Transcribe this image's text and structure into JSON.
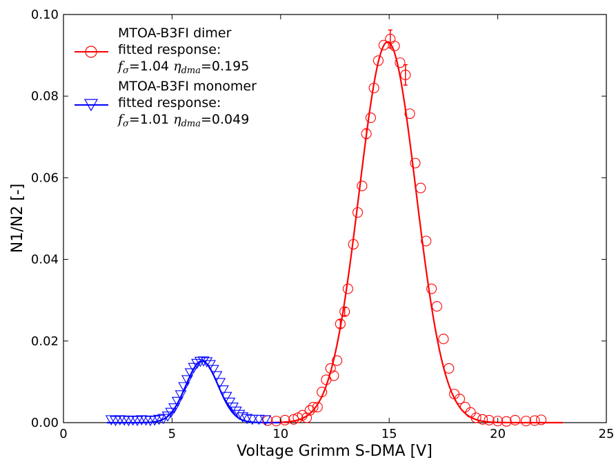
{
  "chart_data": {
    "type": "scatter",
    "xlabel": "Voltage Grimm S-DMA [V]",
    "ylabel": "N1/N2 [-]",
    "xlim": [
      0,
      25
    ],
    "ylim": [
      0,
      0.1
    ],
    "xticks": [
      0,
      5,
      10,
      15,
      20,
      25
    ],
    "xtick_labels": [
      "0",
      "5",
      "10",
      "15",
      "20",
      "25"
    ],
    "yticks": [
      0,
      0.02,
      0.04,
      0.06,
      0.08,
      0.1
    ],
    "ytick_labels": [
      "0.00",
      "0.02",
      "0.04",
      "0.06",
      "0.08",
      "0.10"
    ],
    "grid": false,
    "legend_position": "top-left",
    "series": [
      {
        "name": "MTOA-B3FI dimer",
        "legend_lines": [
          "MTOA-B3FI dimer",
          "fitted response:"
        ],
        "params": {
          "f_sigma": "1.04",
          "eta_dma": "0.195"
        },
        "color": "#ff0000",
        "marker": "circle",
        "points": [
          [
            9.4,
            0.0005
          ],
          [
            9.8,
            0.0004
          ],
          [
            10.2,
            0.0006
          ],
          [
            10.6,
            0.0008
          ],
          [
            10.8,
            0.0012
          ],
          [
            11.0,
            0.0018
          ],
          [
            11.2,
            0.0012
          ],
          [
            11.35,
            0.003
          ],
          [
            11.5,
            0.0038
          ],
          [
            11.7,
            0.0038
          ],
          [
            11.9,
            0.0075
          ],
          [
            12.1,
            0.0105
          ],
          [
            12.3,
            0.0133
          ],
          [
            12.45,
            0.0115
          ],
          [
            12.6,
            0.0152
          ],
          [
            12.75,
            0.0242
          ],
          [
            12.95,
            0.0272
          ],
          [
            13.1,
            0.0328
          ],
          [
            13.35,
            0.0437
          ],
          [
            13.55,
            0.0515
          ],
          [
            13.75,
            0.058
          ],
          [
            13.95,
            0.0708
          ],
          [
            14.15,
            0.0747
          ],
          [
            14.3,
            0.082
          ],
          [
            14.5,
            0.0887
          ],
          [
            14.75,
            0.0925
          ],
          [
            15.05,
            0.094
          ],
          [
            15.25,
            0.0923
          ],
          [
            15.5,
            0.0882
          ],
          [
            15.75,
            0.0852
          ],
          [
            15.95,
            0.0757
          ],
          [
            16.2,
            0.0636
          ],
          [
            16.45,
            0.0575
          ],
          [
            16.7,
            0.0445
          ],
          [
            16.95,
            0.0328
          ],
          [
            17.2,
            0.0285
          ],
          [
            17.5,
            0.0205
          ],
          [
            17.75,
            0.0133
          ],
          [
            18.0,
            0.007
          ],
          [
            18.25,
            0.0058
          ],
          [
            18.5,
            0.0038
          ],
          [
            18.75,
            0.0025
          ],
          [
            19.0,
            0.0012
          ],
          [
            19.3,
            0.0008
          ],
          [
            19.6,
            0.0006
          ],
          [
            20.0,
            0.0004
          ],
          [
            20.4,
            0.0003
          ],
          [
            20.8,
            0.0006
          ],
          [
            21.3,
            0.0004
          ],
          [
            21.7,
            0.0005
          ],
          [
            22.0,
            0.0007
          ]
        ],
        "errorbars": [
          [
            13.95,
            0.0708,
            0.0012
          ],
          [
            15.05,
            0.094,
            0.0022
          ],
          [
            15.75,
            0.0852,
            0.0025
          ],
          [
            12.75,
            0.0242,
            0.001
          ],
          [
            12.95,
            0.0272,
            0.001
          ]
        ],
        "fit": {
          "mu": 14.93,
          "sigma": 1.31,
          "amp": 0.0933,
          "x_range": [
            9.5,
            23
          ]
        }
      },
      {
        "name": "MTOA-B3FI monomer",
        "legend_lines": [
          "MTOA-B3FI monomer",
          "fitted response:"
        ],
        "params": {
          "f_sigma": "1.01",
          "eta_dma": "0.049"
        },
        "color": "#0000ff",
        "marker": "triangle-down",
        "points": [
          [
            2.2,
            0.0007
          ],
          [
            2.4,
            0.0005
          ],
          [
            2.6,
            0.0007
          ],
          [
            2.8,
            0.0006
          ],
          [
            3.0,
            0.0005
          ],
          [
            3.2,
            0.0006
          ],
          [
            3.4,
            0.0005
          ],
          [
            3.6,
            0.0007
          ],
          [
            3.8,
            0.0006
          ],
          [
            4.0,
            0.0005
          ],
          [
            4.2,
            0.0006
          ],
          [
            4.4,
            0.0008
          ],
          [
            4.6,
            0.001
          ],
          [
            4.8,
            0.0016
          ],
          [
            4.95,
            0.0025
          ],
          [
            5.1,
            0.0036
          ],
          [
            5.25,
            0.0052
          ],
          [
            5.4,
            0.0068
          ],
          [
            5.55,
            0.0088
          ],
          [
            5.7,
            0.0105
          ],
          [
            5.85,
            0.0122
          ],
          [
            6.0,
            0.0135
          ],
          [
            6.15,
            0.0145
          ],
          [
            6.3,
            0.015
          ],
          [
            6.45,
            0.0151
          ],
          [
            6.6,
            0.0149
          ],
          [
            6.75,
            0.0142
          ],
          [
            6.9,
            0.013
          ],
          [
            7.05,
            0.0115
          ],
          [
            7.2,
            0.0098
          ],
          [
            7.35,
            0.008
          ],
          [
            7.5,
            0.0064
          ],
          [
            7.65,
            0.005
          ],
          [
            7.8,
            0.0038
          ],
          [
            7.95,
            0.0028
          ],
          [
            8.1,
            0.002
          ],
          [
            8.25,
            0.0014
          ],
          [
            8.45,
            0.001
          ],
          [
            8.7,
            0.0008
          ],
          [
            9.0,
            0.0008
          ],
          [
            9.3,
            0.0007
          ]
        ],
        "errorbars": [],
        "fit": {
          "mu": 6.38,
          "sigma": 0.74,
          "amp": 0.0151,
          "x_range": [
            2.0,
            10.0
          ]
        }
      }
    ]
  }
}
